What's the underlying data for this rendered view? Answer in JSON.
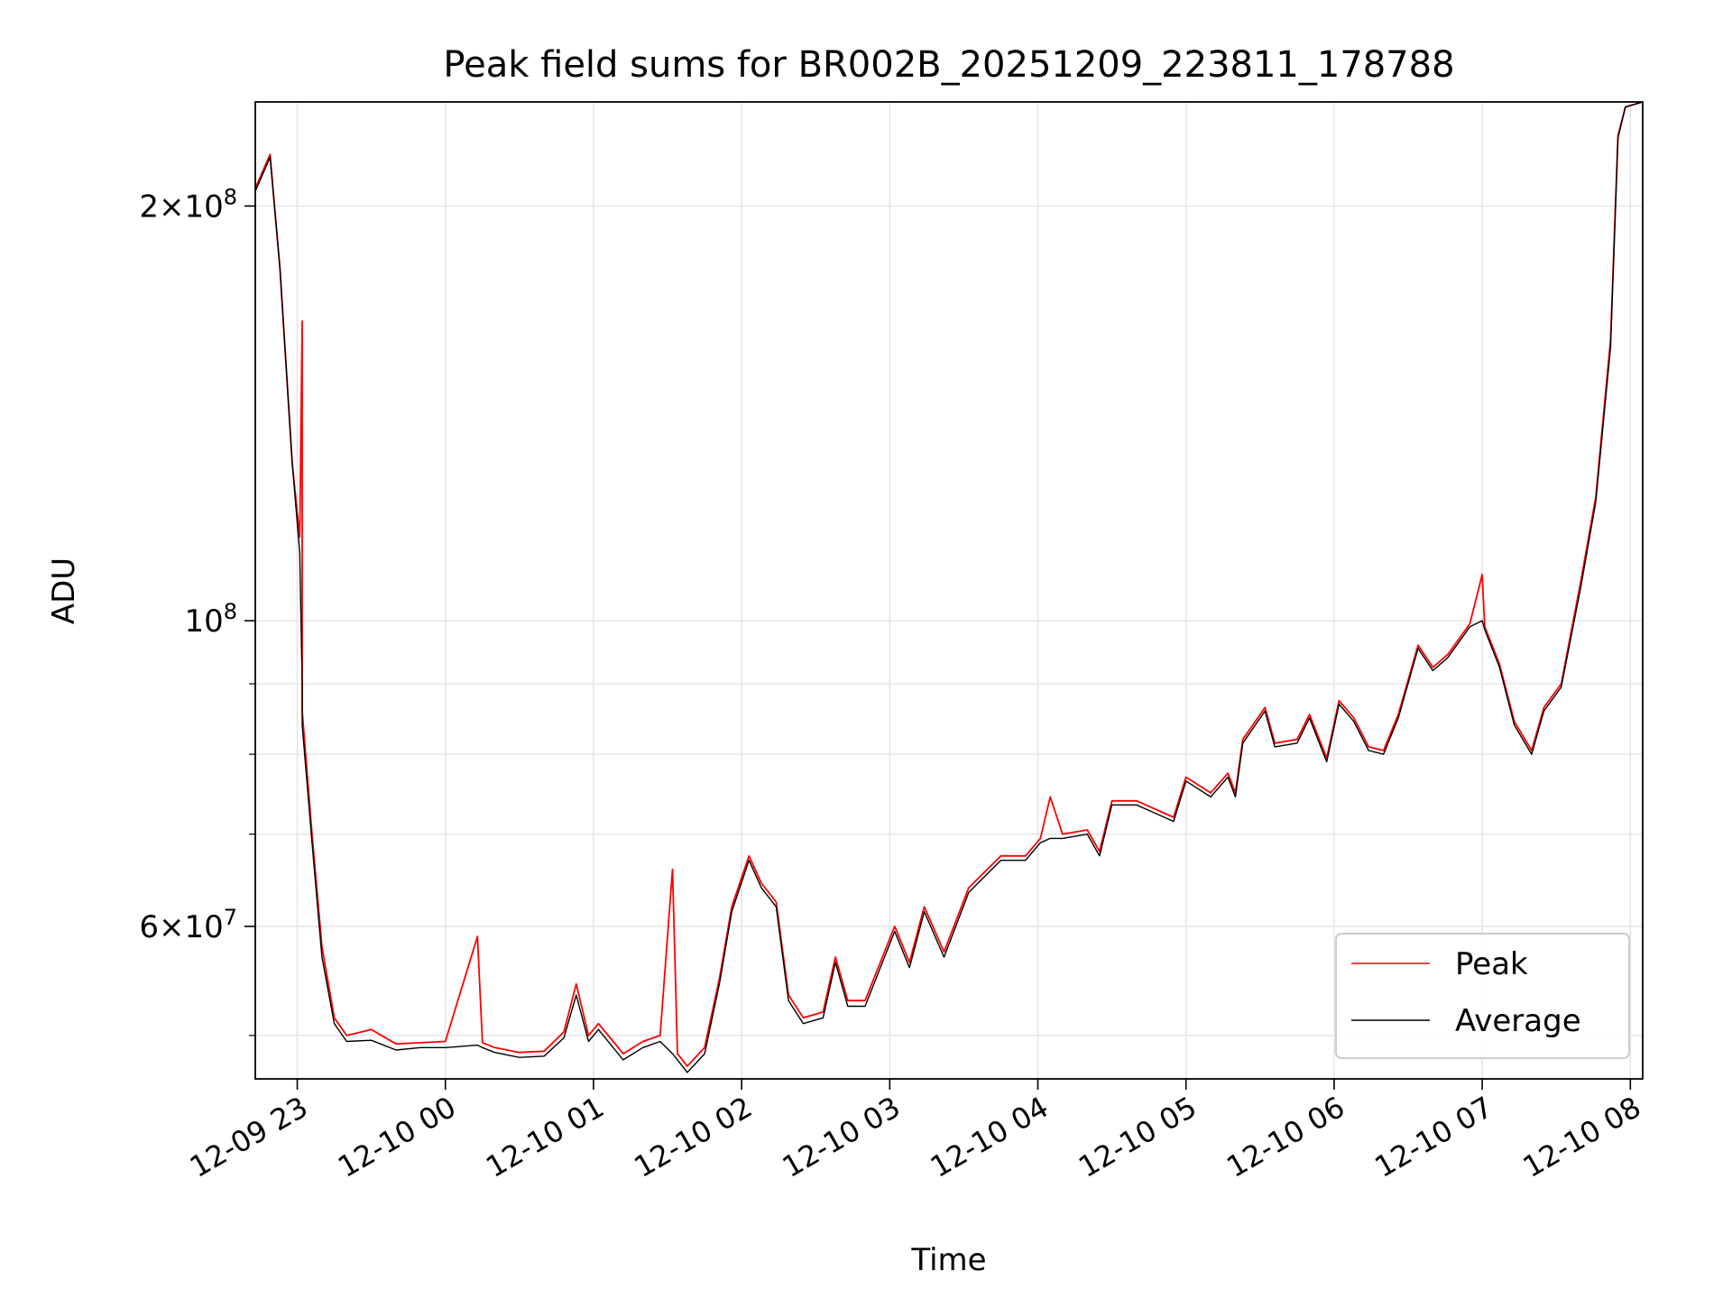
{
  "chart_data": {
    "type": "line",
    "title": "Peak field sums for BR002B_20251209_223811_178788",
    "xlabel": "Time",
    "ylabel": "ADU",
    "y_scale": "log",
    "grid": true,
    "legend_position": "lower-right",
    "xlim": [
      "2025-12-09 22:43",
      "2025-12-10 08:05"
    ],
    "ylim": [
      46500000,
      238000000
    ],
    "x_ticks": [
      {
        "value": "2025-12-09 23:00",
        "label": "12-09 23"
      },
      {
        "value": "2025-12-10 00:00",
        "label": "12-10 00"
      },
      {
        "value": "2025-12-10 01:00",
        "label": "12-10 01"
      },
      {
        "value": "2025-12-10 02:00",
        "label": "12-10 02"
      },
      {
        "value": "2025-12-10 03:00",
        "label": "12-10 03"
      },
      {
        "value": "2025-12-10 04:00",
        "label": "12-10 04"
      },
      {
        "value": "2025-12-10 05:00",
        "label": "12-10 05"
      },
      {
        "value": "2025-12-10 06:00",
        "label": "12-10 06"
      },
      {
        "value": "2025-12-10 07:00",
        "label": "12-10 07"
      },
      {
        "value": "2025-12-10 08:00",
        "label": "12-10 08"
      }
    ],
    "y_major_ticks": [
      {
        "value": 200000000,
        "base": "2",
        "exp": "8"
      },
      {
        "value": 100000000,
        "base": "",
        "exp": "8"
      },
      {
        "value": 60000000,
        "base": "6",
        "exp": "7"
      }
    ],
    "y_minor_ticks": [
      50000000,
      70000000,
      80000000,
      90000000
    ],
    "series": [
      {
        "name": "Peak",
        "color": "#ff0000",
        "points": [
          [
            "2025-12-09 22:43",
            206000000
          ],
          [
            "2025-12-09 22:49",
            218000000
          ],
          [
            "2025-12-09 22:53",
            180000000
          ],
          [
            "2025-12-09 22:58",
            130000000
          ],
          [
            "2025-12-09 23:01",
            115000000
          ],
          [
            "2025-12-09 23:02",
            165000000
          ],
          [
            "2025-12-09 23:02",
            86000000
          ],
          [
            "2025-12-09 23:06",
            70000000
          ],
          [
            "2025-12-09 23:10",
            58000000
          ],
          [
            "2025-12-09 23:15",
            51500000
          ],
          [
            "2025-12-09 23:20",
            50000000
          ],
          [
            "2025-12-09 23:30",
            50500000
          ],
          [
            "2025-12-09 23:40",
            49300000
          ],
          [
            "2025-12-09 23:50",
            49400000
          ],
          [
            "2025-12-10 00:00",
            49500000
          ],
          [
            "2025-12-10 00:13",
            59000000
          ],
          [
            "2025-12-10 00:15",
            49400000
          ],
          [
            "2025-12-10 00:20",
            49000000
          ],
          [
            "2025-12-10 00:30",
            48600000
          ],
          [
            "2025-12-10 00:40",
            48700000
          ],
          [
            "2025-12-10 00:48",
            50300000
          ],
          [
            "2025-12-10 00:53",
            54500000
          ],
          [
            "2025-12-10 00:58",
            50000000
          ],
          [
            "2025-12-10 01:02",
            51000000
          ],
          [
            "2025-12-10 01:08",
            49500000
          ],
          [
            "2025-12-10 01:12",
            48500000
          ],
          [
            "2025-12-10 01:20",
            49500000
          ],
          [
            "2025-12-10 01:27",
            50000000
          ],
          [
            "2025-12-10 01:32",
            66000000
          ],
          [
            "2025-12-10 01:34",
            48500000
          ],
          [
            "2025-12-10 01:38",
            47500000
          ],
          [
            "2025-12-10 01:45",
            49000000
          ],
          [
            "2025-12-10 01:51",
            55000000
          ],
          [
            "2025-12-10 01:56",
            62000000
          ],
          [
            "2025-12-10 02:03",
            67500000
          ],
          [
            "2025-12-10 02:08",
            64500000
          ],
          [
            "2025-12-10 02:14",
            62500000
          ],
          [
            "2025-12-10 02:19",
            53500000
          ],
          [
            "2025-12-10 02:25",
            51500000
          ],
          [
            "2025-12-10 02:33",
            52000000
          ],
          [
            "2025-12-10 02:38",
            57000000
          ],
          [
            "2025-12-10 02:43",
            53000000
          ],
          [
            "2025-12-10 02:50",
            53000000
          ],
          [
            "2025-12-10 03:02",
            60000000
          ],
          [
            "2025-12-10 03:08",
            56500000
          ],
          [
            "2025-12-10 03:14",
            62000000
          ],
          [
            "2025-12-10 03:22",
            57500000
          ],
          [
            "2025-12-10 03:32",
            64000000
          ],
          [
            "2025-12-10 03:45",
            67500000
          ],
          [
            "2025-12-10 03:55",
            67500000
          ],
          [
            "2025-12-10 04:01",
            69500000
          ],
          [
            "2025-12-10 04:05",
            74500000
          ],
          [
            "2025-12-10 04:10",
            70000000
          ],
          [
            "2025-12-10 04:20",
            70500000
          ],
          [
            "2025-12-10 04:25",
            68000000
          ],
          [
            "2025-12-10 04:30",
            74000000
          ],
          [
            "2025-12-10 04:40",
            74000000
          ],
          [
            "2025-12-10 04:55",
            72000000
          ],
          [
            "2025-12-10 05:00",
            77000000
          ],
          [
            "2025-12-10 05:10",
            75000000
          ],
          [
            "2025-12-10 05:17",
            77500000
          ],
          [
            "2025-12-10 05:20",
            75000000
          ],
          [
            "2025-12-10 05:23",
            82000000
          ],
          [
            "2025-12-10 05:32",
            86500000
          ],
          [
            "2025-12-10 05:36",
            81500000
          ],
          [
            "2025-12-10 05:45",
            82000000
          ],
          [
            "2025-12-10 05:50",
            85500000
          ],
          [
            "2025-12-10 05:57",
            79500000
          ],
          [
            "2025-12-10 06:02",
            87500000
          ],
          [
            "2025-12-10 06:08",
            85000000
          ],
          [
            "2025-12-10 06:14",
            81000000
          ],
          [
            "2025-12-10 06:20",
            80500000
          ],
          [
            "2025-12-10 06:26",
            85500000
          ],
          [
            "2025-12-10 06:34",
            96000000
          ],
          [
            "2025-12-10 06:40",
            92500000
          ],
          [
            "2025-12-10 06:46",
            94500000
          ],
          [
            "2025-12-10 06:55",
            99500000
          ],
          [
            "2025-12-10 07:00",
            108000000
          ],
          [
            "2025-12-10 07:01",
            99000000
          ],
          [
            "2025-12-10 07:07",
            93000000
          ],
          [
            "2025-12-10 07:13",
            84500000
          ],
          [
            "2025-12-10 07:20",
            80500000
          ],
          [
            "2025-12-10 07:25",
            86500000
          ],
          [
            "2025-12-10 07:32",
            90000000
          ],
          [
            "2025-12-10 07:40",
            107000000
          ],
          [
            "2025-12-10 07:46",
            123000000
          ],
          [
            "2025-12-10 07:52",
            160000000
          ],
          [
            "2025-12-10 07:55",
            225000000
          ],
          [
            "2025-12-10 07:58",
            236000000
          ],
          [
            "2025-12-10 08:05",
            238000000
          ]
        ]
      },
      {
        "name": "Average",
        "color": "#000000",
        "points": [
          [
            "2025-12-09 22:43",
            205000000
          ],
          [
            "2025-12-09 22:49",
            217000000
          ],
          [
            "2025-12-09 22:53",
            180000000
          ],
          [
            "2025-12-09 22:58",
            130000000
          ],
          [
            "2025-12-09 23:01",
            112000000
          ],
          [
            "2025-12-09 23:02",
            90000000
          ],
          [
            "2025-12-09 23:02",
            84000000
          ],
          [
            "2025-12-09 23:06",
            69000000
          ],
          [
            "2025-12-09 23:10",
            57000000
          ],
          [
            "2025-12-09 23:15",
            51000000
          ],
          [
            "2025-12-09 23:20",
            49500000
          ],
          [
            "2025-12-09 23:30",
            49600000
          ],
          [
            "2025-12-09 23:40",
            48800000
          ],
          [
            "2025-12-09 23:50",
            49000000
          ],
          [
            "2025-12-10 00:00",
            49000000
          ],
          [
            "2025-12-10 00:13",
            49200000
          ],
          [
            "2025-12-10 00:15",
            49000000
          ],
          [
            "2025-12-10 00:20",
            48600000
          ],
          [
            "2025-12-10 00:30",
            48200000
          ],
          [
            "2025-12-10 00:40",
            48300000
          ],
          [
            "2025-12-10 00:48",
            49800000
          ],
          [
            "2025-12-10 00:53",
            53500000
          ],
          [
            "2025-12-10 00:58",
            49500000
          ],
          [
            "2025-12-10 01:02",
            50500000
          ],
          [
            "2025-12-10 01:08",
            49000000
          ],
          [
            "2025-12-10 01:12",
            48000000
          ],
          [
            "2025-12-10 01:20",
            49000000
          ],
          [
            "2025-12-10 01:27",
            49500000
          ],
          [
            "2025-12-10 01:32",
            48500000
          ],
          [
            "2025-12-10 01:34",
            48000000
          ],
          [
            "2025-12-10 01:38",
            47000000
          ],
          [
            "2025-12-10 01:45",
            48500000
          ],
          [
            "2025-12-10 01:51",
            54500000
          ],
          [
            "2025-12-10 01:56",
            61500000
          ],
          [
            "2025-12-10 02:03",
            67000000
          ],
          [
            "2025-12-10 02:08",
            64000000
          ],
          [
            "2025-12-10 02:14",
            62000000
          ],
          [
            "2025-12-10 02:19",
            53000000
          ],
          [
            "2025-12-10 02:25",
            51000000
          ],
          [
            "2025-12-10 02:33",
            51500000
          ],
          [
            "2025-12-10 02:38",
            56500000
          ],
          [
            "2025-12-10 02:43",
            52500000
          ],
          [
            "2025-12-10 02:50",
            52500000
          ],
          [
            "2025-12-10 03:02",
            59500000
          ],
          [
            "2025-12-10 03:08",
            56000000
          ],
          [
            "2025-12-10 03:14",
            61500000
          ],
          [
            "2025-12-10 03:22",
            57000000
          ],
          [
            "2025-12-10 03:32",
            63500000
          ],
          [
            "2025-12-10 03:45",
            67000000
          ],
          [
            "2025-12-10 03:55",
            67000000
          ],
          [
            "2025-12-10 04:01",
            69000000
          ],
          [
            "2025-12-10 04:05",
            69500000
          ],
          [
            "2025-12-10 04:10",
            69500000
          ],
          [
            "2025-12-10 04:20",
            70000000
          ],
          [
            "2025-12-10 04:25",
            67500000
          ],
          [
            "2025-12-10 04:30",
            73500000
          ],
          [
            "2025-12-10 04:40",
            73500000
          ],
          [
            "2025-12-10 04:55",
            71500000
          ],
          [
            "2025-12-10 05:00",
            76500000
          ],
          [
            "2025-12-10 05:10",
            74500000
          ],
          [
            "2025-12-10 05:17",
            77000000
          ],
          [
            "2025-12-10 05:20",
            74500000
          ],
          [
            "2025-12-10 05:23",
            81500000
          ],
          [
            "2025-12-10 05:32",
            86000000
          ],
          [
            "2025-12-10 05:36",
            81000000
          ],
          [
            "2025-12-10 05:45",
            81500000
          ],
          [
            "2025-12-10 05:50",
            85000000
          ],
          [
            "2025-12-10 05:57",
            79000000
          ],
          [
            "2025-12-10 06:02",
            87000000
          ],
          [
            "2025-12-10 06:08",
            84500000
          ],
          [
            "2025-12-10 06:14",
            80500000
          ],
          [
            "2025-12-10 06:20",
            80000000
          ],
          [
            "2025-12-10 06:26",
            85000000
          ],
          [
            "2025-12-10 06:34",
            95500000
          ],
          [
            "2025-12-10 06:40",
            92000000
          ],
          [
            "2025-12-10 06:46",
            94000000
          ],
          [
            "2025-12-10 06:55",
            99000000
          ],
          [
            "2025-12-10 07:00",
            100000000
          ],
          [
            "2025-12-10 07:01",
            98500000
          ],
          [
            "2025-12-10 07:07",
            92500000
          ],
          [
            "2025-12-10 07:13",
            84000000
          ],
          [
            "2025-12-10 07:20",
            80000000
          ],
          [
            "2025-12-10 07:25",
            86000000
          ],
          [
            "2025-12-10 07:32",
            89500000
          ],
          [
            "2025-12-10 07:40",
            106000000
          ],
          [
            "2025-12-10 07:46",
            122000000
          ],
          [
            "2025-12-10 07:52",
            158000000
          ],
          [
            "2025-12-10 07:55",
            224000000
          ],
          [
            "2025-12-10 07:58",
            236000000
          ],
          [
            "2025-12-10 08:05",
            238000000
          ]
        ]
      }
    ]
  }
}
